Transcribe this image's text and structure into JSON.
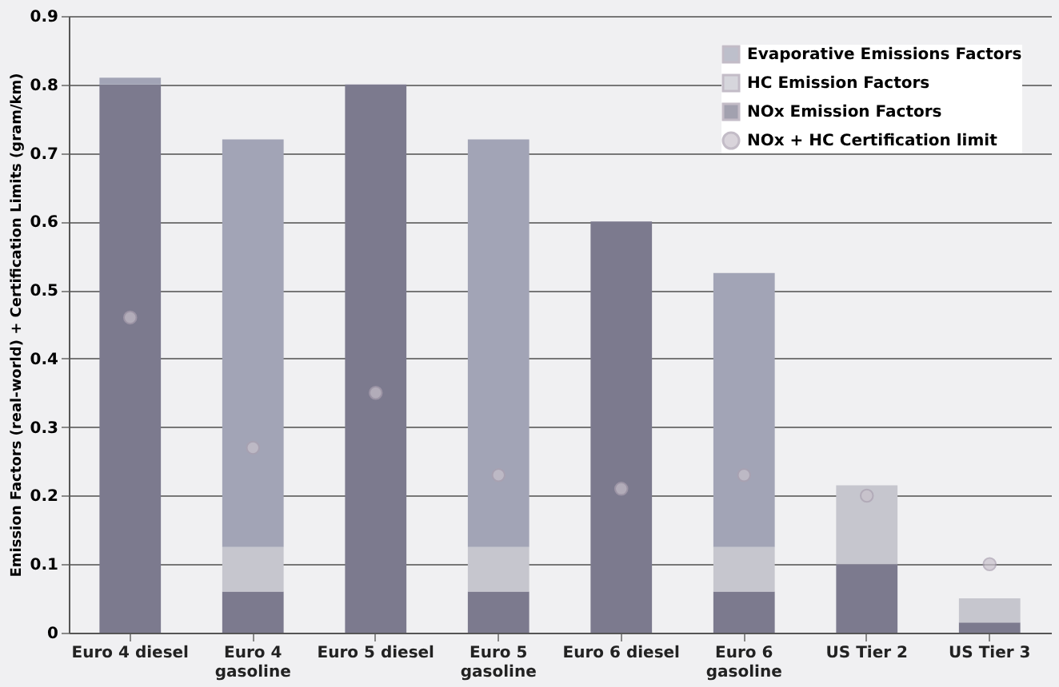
{
  "chart_data": {
    "type": "bar",
    "stacked": true,
    "ylabel": "Emission Factors (real-world) + Certification Limits (gram/km)",
    "categories": [
      "Euro 4 diesel",
      "Euro 4 gasoline",
      "Euro 5 diesel",
      "Euro 5 gasoline",
      "Euro 6 diesel",
      "Euro 6 gasoline",
      "US Tier 2",
      "US Tier 3"
    ],
    "series": [
      {
        "name": "NOx Emission Factors",
        "color": "#7c7a8e",
        "values": [
          0.8,
          0.06,
          0.8,
          0.06,
          0.6,
          0.06,
          0.1,
          0.015
        ]
      },
      {
        "name": "HC Emission Factors",
        "color": "#c6c6ce",
        "values": [
          null,
          0.065,
          null,
          0.065,
          null,
          0.065,
          0.115,
          0.035
        ]
      },
      {
        "name": "Evaporative Emissions Factors",
        "color": "#a2a4b6",
        "values": [
          0.01,
          0.595,
          null,
          0.595,
          null,
          0.4,
          null,
          null
        ]
      },
      {
        "name": "NOx + HC Certification limit",
        "type": "scatter",
        "color": "#c9c2cc",
        "values": [
          0.46,
          0.27,
          0.35,
          0.23,
          0.21,
          0.23,
          0.2,
          0.1
        ]
      }
    ],
    "ylim": [
      0,
      0.9
    ],
    "yticks": [
      0,
      0.1,
      0.2,
      0.3,
      0.4,
      0.5,
      0.6,
      0.7,
      0.8,
      0.9
    ],
    "grid": "y",
    "legend": "top right",
    "marker": "circle"
  }
}
